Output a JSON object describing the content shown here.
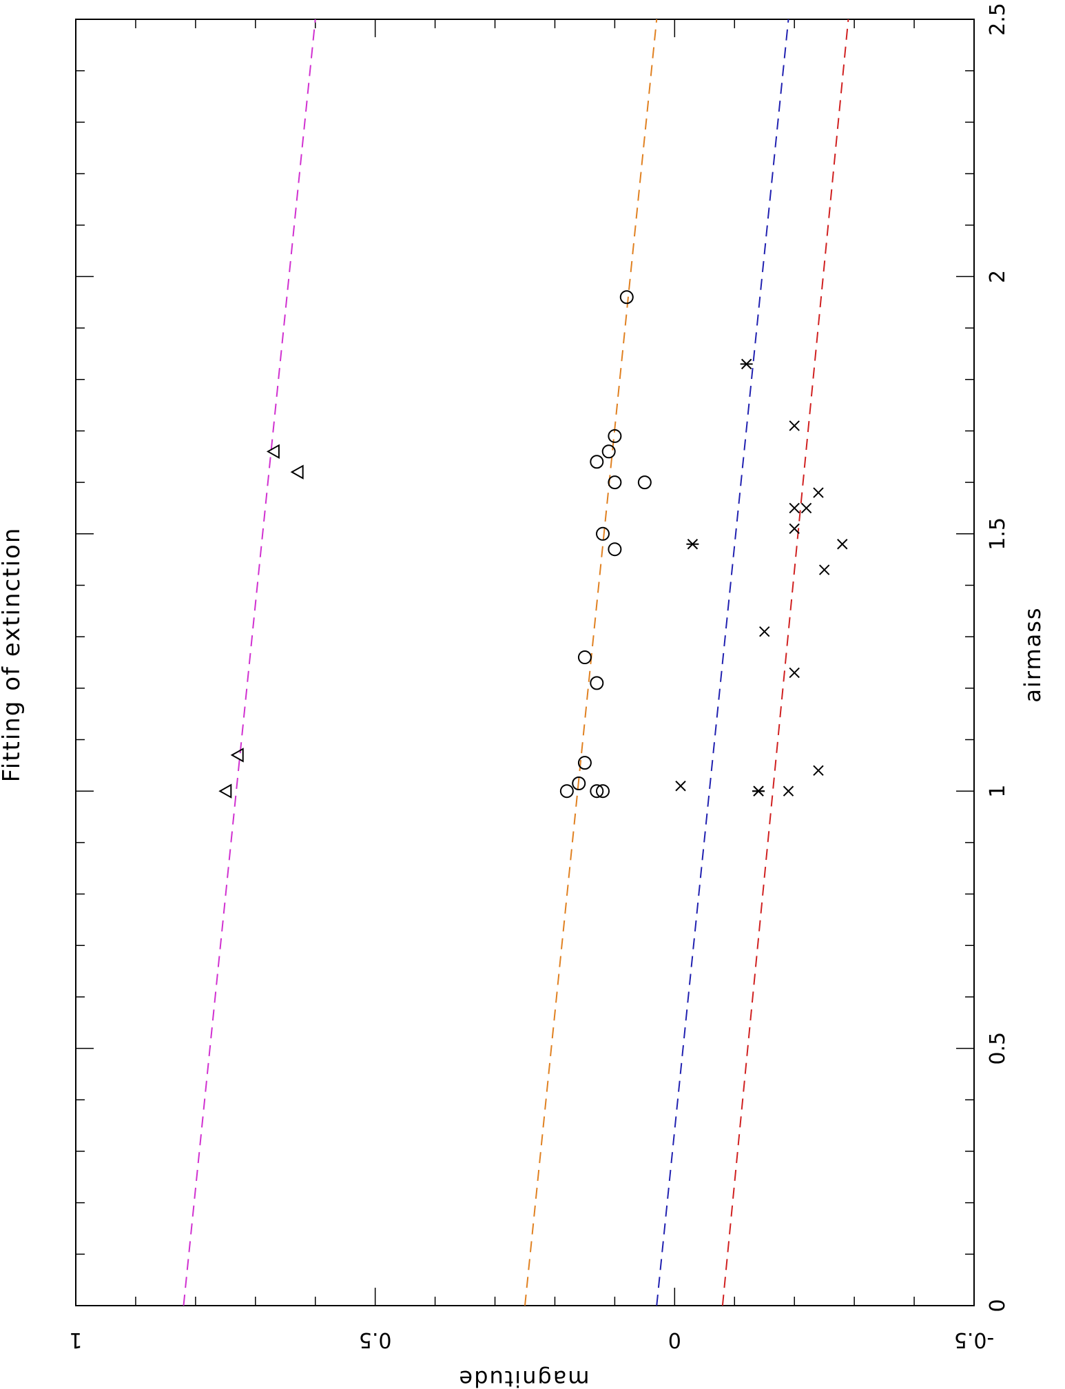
{
  "chart_data": {
    "type": "scatter",
    "orientation": "rotated 90° clockwise (airmass axis runs top-to-bottom on the page)",
    "title": "Fitting of extinction",
    "xlabel": "airmass",
    "ylabel": "magnitude",
    "xlim": [
      0,
      2.5
    ],
    "ylim": [
      -0.5,
      1
    ],
    "x_ticks": [
      {
        "value": 0,
        "label": "0"
      },
      {
        "value": 0.5,
        "label": "0.5"
      },
      {
        "value": 1,
        "label": "1"
      },
      {
        "value": 1.5,
        "label": "1.5"
      },
      {
        "value": 2,
        "label": "2"
      },
      {
        "value": 2.5,
        "label": "2.5"
      }
    ],
    "y_ticks": [
      {
        "value": -0.5,
        "label": "-0.5"
      },
      {
        "value": 0,
        "label": "0"
      },
      {
        "value": 0.5,
        "label": "0.5"
      },
      {
        "value": 1,
        "label": "1"
      }
    ],
    "grid": false,
    "legend": "none",
    "fit_lines": [
      {
        "color": "#d030d0",
        "points": [
          [
            0,
            0.82
          ],
          [
            2.5,
            0.6
          ]
        ]
      },
      {
        "color": "#e08020",
        "points": [
          [
            0,
            0.25
          ],
          [
            2.5,
            0.03
          ]
        ]
      },
      {
        "color": "#2020b0",
        "points": [
          [
            0,
            0.03
          ],
          [
            2.5,
            -0.19
          ]
        ]
      },
      {
        "color": "#d02020",
        "points": [
          [
            0,
            -0.08
          ],
          [
            2.5,
            -0.29
          ]
        ]
      }
    ],
    "series": [
      {
        "marker": "triangle",
        "points": [
          [
            1.0,
            0.75
          ],
          [
            1.07,
            0.73
          ],
          [
            1.62,
            0.63
          ],
          [
            1.66,
            0.67
          ]
        ]
      },
      {
        "marker": "circle",
        "points": [
          [
            1.0,
            0.18
          ],
          [
            1.015,
            0.16
          ],
          [
            1.055,
            0.15
          ],
          [
            1.0,
            0.13
          ],
          [
            1.0,
            0.12
          ],
          [
            1.21,
            0.13
          ],
          [
            1.26,
            0.15
          ],
          [
            1.47,
            0.1
          ],
          [
            1.5,
            0.12
          ],
          [
            1.6,
            0.1
          ],
          [
            1.6,
            0.05
          ],
          [
            1.64,
            0.13
          ],
          [
            1.66,
            0.11
          ],
          [
            1.69,
            0.1
          ],
          [
            1.96,
            0.08
          ]
        ]
      },
      {
        "marker": "asterisk",
        "points": [
          [
            1.0,
            -0.14
          ],
          [
            1.0,
            -0.14
          ],
          [
            1.48,
            -0.03
          ],
          [
            1.83,
            -0.12
          ]
        ]
      },
      {
        "marker": "x",
        "points": [
          [
            1.01,
            -0.01
          ],
          [
            1.0,
            -0.19
          ],
          [
            1.04,
            -0.24
          ],
          [
            1.23,
            -0.2
          ],
          [
            1.31,
            -0.15
          ],
          [
            1.43,
            -0.25
          ],
          [
            1.48,
            -0.28
          ],
          [
            1.51,
            -0.2
          ],
          [
            1.55,
            -0.22
          ],
          [
            1.55,
            -0.2
          ],
          [
            1.58,
            -0.24
          ],
          [
            1.71,
            -0.2
          ]
        ]
      }
    ]
  }
}
